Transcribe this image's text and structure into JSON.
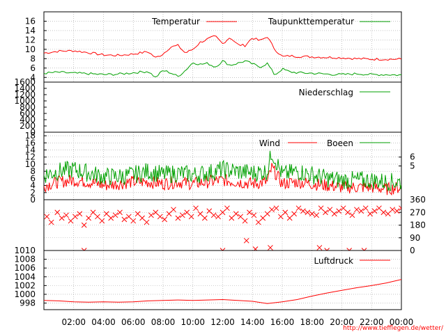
{
  "colors": {
    "red": "#ff0000",
    "green": "#00a000",
    "grid": "#a0a0a0",
    "frame": "#000000",
    "credit": "#ff0000"
  },
  "credit": "http://www.tiefflegen.de/wetter/",
  "x_ticks": [
    "02:00",
    "04:00",
    "06:00",
    "08:00",
    "10:00",
    "12:00",
    "14:00",
    "16:00",
    "18:00",
    "20:00",
    "22:00",
    "00:00"
  ],
  "chart_data": [
    {
      "type": "line",
      "ylim": [
        3,
        18
      ],
      "yticks": [
        "4",
        "6",
        "8",
        "10",
        "12",
        "14",
        "16"
      ],
      "yticks_values": [
        4,
        6,
        8,
        10,
        12,
        14,
        16
      ],
      "grid": true,
      "legend": "top",
      "x_hours": [
        0,
        1,
        2,
        3,
        4,
        5,
        6,
        7,
        7.5,
        8,
        8.5,
        9,
        9.5,
        10,
        10.5,
        11,
        11.5,
        12,
        12.5,
        13,
        13.5,
        14,
        14.5,
        15,
        15.5,
        16,
        16.5,
        17,
        18,
        19,
        20,
        21,
        22,
        23,
        24
      ],
      "series": [
        {
          "name": "Temperatur",
          "color": "#ff0000",
          "values": [
            9.2,
            9.6,
            9.7,
            9.3,
            8.8,
            8.7,
            9.0,
            9.5,
            8.2,
            9.0,
            10.5,
            10.8,
            9.2,
            10.0,
            11.5,
            12.2,
            12.8,
            11.2,
            12.6,
            11.0,
            10.8,
            12.5,
            11.8,
            12.7,
            10.0,
            8.4,
            8.6,
            8.5,
            8.4,
            8.3,
            8.2,
            8.0,
            7.9,
            7.9,
            7.9
          ]
        },
        {
          "name": "Taupunkttemperatur",
          "color": "#00a000",
          "values": [
            4.9,
            5.1,
            4.9,
            4.8,
            4.6,
            4.7,
            5.0,
            5.3,
            4.0,
            5.5,
            5.0,
            4.2,
            5.5,
            7.2,
            6.8,
            7.0,
            6.2,
            7.5,
            6.6,
            7.0,
            7.5,
            6.9,
            6.2,
            7.0,
            4.5,
            5.8,
            5.2,
            5.0,
            4.9,
            4.7,
            4.6,
            4.8,
            4.6,
            4.6,
            4.5
          ]
        }
      ]
    },
    {
      "type": "line",
      "ylim": [
        0,
        1600
      ],
      "yticks": [
        "0",
        "200",
        "400",
        "600",
        "800",
        "1000",
        "1200",
        "1400",
        "1600"
      ],
      "yticks_values": [
        0,
        200,
        400,
        600,
        800,
        1000,
        1200,
        1400,
        1600
      ],
      "x_hours": [
        0,
        24
      ],
      "legend": "top-right",
      "series": [
        {
          "name": "Niederschlag",
          "color": "#00a000",
          "values": [
            0,
            0
          ]
        }
      ]
    },
    {
      "type": "line",
      "ylim": [
        0,
        19
      ],
      "yticks": [
        "0",
        "2",
        "4",
        "6",
        "8",
        "10",
        "12",
        "14",
        "16",
        "18"
      ],
      "yticks_values": [
        0,
        2,
        4,
        6,
        8,
        10,
        12,
        14,
        16,
        18
      ],
      "yticks_right": [
        "5",
        "6"
      ],
      "yticks_right_values": [
        9.5,
        12
      ],
      "grid": true,
      "legend": "top-right",
      "x_hours": [
        0,
        1,
        2,
        3,
        4,
        5,
        6,
        7,
        8,
        9,
        10,
        11,
        12,
        13,
        14,
        15,
        15.3,
        16,
        17,
        18,
        19,
        20,
        21,
        22,
        23,
        24
      ],
      "series": [
        {
          "name": "Wind",
          "color": "#ff0000",
          "values": [
            4,
            5,
            5.5,
            5,
            4,
            4.5,
            5,
            5,
            4.5,
            5,
            4.5,
            5,
            5.5,
            5,
            4.5,
            5,
            9,
            4.5,
            5,
            4.5,
            4,
            3.5,
            3.5,
            3.5,
            3,
            3.5
          ]
        },
        {
          "name": "Boeen",
          "color": "#00a000",
          "values": [
            7,
            8,
            8.5,
            7.5,
            6.5,
            6.5,
            7,
            8,
            7,
            7.5,
            7,
            7.5,
            8.5,
            8,
            7.5,
            8,
            13.5,
            7,
            8,
            7,
            6,
            5.5,
            5.5,
            5.5,
            5,
            5
          ]
        }
      ]
    },
    {
      "type": "scatter",
      "ylim": [
        0,
        360
      ],
      "yticks_right": [
        "0",
        "90",
        "180",
        "270",
        "360"
      ],
      "yticks_right_values": [
        0,
        90,
        180,
        270,
        360
      ],
      "grid": true,
      "color": "#ff0000",
      "x": [
        0.2,
        0.5,
        0.9,
        1.2,
        1.5,
        1.8,
        2.1,
        2.4,
        2.7,
        3.0,
        3.3,
        3.6,
        3.9,
        4.2,
        4.5,
        4.8,
        5.1,
        5.4,
        5.7,
        6.0,
        6.3,
        6.6,
        6.9,
        7.2,
        7.5,
        7.8,
        8.1,
        8.4,
        8.7,
        9.0,
        9.3,
        9.6,
        9.9,
        10.2,
        10.5,
        10.8,
        11.1,
        11.4,
        11.7,
        12.0,
        12.3,
        12.6,
        12.9,
        13.2,
        13.5,
        13.8,
        14.1,
        14.4,
        14.7,
        15.0,
        15.3,
        15.6,
        15.9,
        16.2,
        16.5,
        16.8,
        17.1,
        17.4,
        17.7,
        18.0,
        18.3,
        18.6,
        18.9,
        19.2,
        19.5,
        19.8,
        20.1,
        20.4,
        20.7,
        21.0,
        21.3,
        21.6,
        21.9,
        22.2,
        22.5,
        22.8,
        23.1,
        23.4,
        23.7,
        24.0,
        2.7,
        12.0,
        13.6,
        14.2,
        15.2,
        18.5,
        19.0,
        20.5,
        21.5
      ],
      "y": [
        240,
        200,
        270,
        230,
        250,
        210,
        240,
        260,
        180,
        230,
        270,
        240,
        210,
        260,
        230,
        250,
        270,
        220,
        240,
        210,
        260,
        230,
        200,
        250,
        270,
        240,
        220,
        260,
        290,
        230,
        250,
        270,
        240,
        300,
        260,
        230,
        280,
        250,
        240,
        270,
        300,
        230,
        260,
        240,
        210,
        270,
        250,
        200,
        230,
        260,
        290,
        300,
        240,
        270,
        230,
        260,
        300,
        280,
        270,
        260,
        250,
        300,
        270,
        290,
        260,
        280,
        300,
        270,
        250,
        290,
        280,
        300,
        260,
        280,
        300,
        270,
        260,
        290,
        280,
        300,
        0,
        0,
        70,
        10,
        20,
        20,
        0,
        0,
        0
      ]
    },
    {
      "type": "line",
      "ylim": [
        996.5,
        1010
      ],
      "yticks": [
        "998",
        "1000",
        "1002",
        "1004",
        "1006",
        "1008",
        "1010"
      ],
      "yticks_values": [
        998,
        1000,
        1002,
        1004,
        1006,
        1008,
        1010
      ],
      "grid": true,
      "legend": "top-right",
      "x_hours": [
        0,
        1,
        2,
        3,
        4,
        5,
        6,
        7,
        8,
        9,
        10,
        11,
        12,
        13,
        14,
        15,
        16,
        17,
        18,
        19,
        20,
        21,
        22,
        23,
        24
      ],
      "series": [
        {
          "name": "Luftdruck",
          "color": "#ff0000",
          "values": [
            998.6,
            998.5,
            998.3,
            998.2,
            998.3,
            998.2,
            998.3,
            998.5,
            998.6,
            998.7,
            998.6,
            998.7,
            998.8,
            998.6,
            998.4,
            997.9,
            998.3,
            998.8,
            999.6,
            1000.3,
            1000.9,
            1001.5,
            1002.0,
            1002.6,
            1003.4
          ]
        }
      ]
    }
  ]
}
